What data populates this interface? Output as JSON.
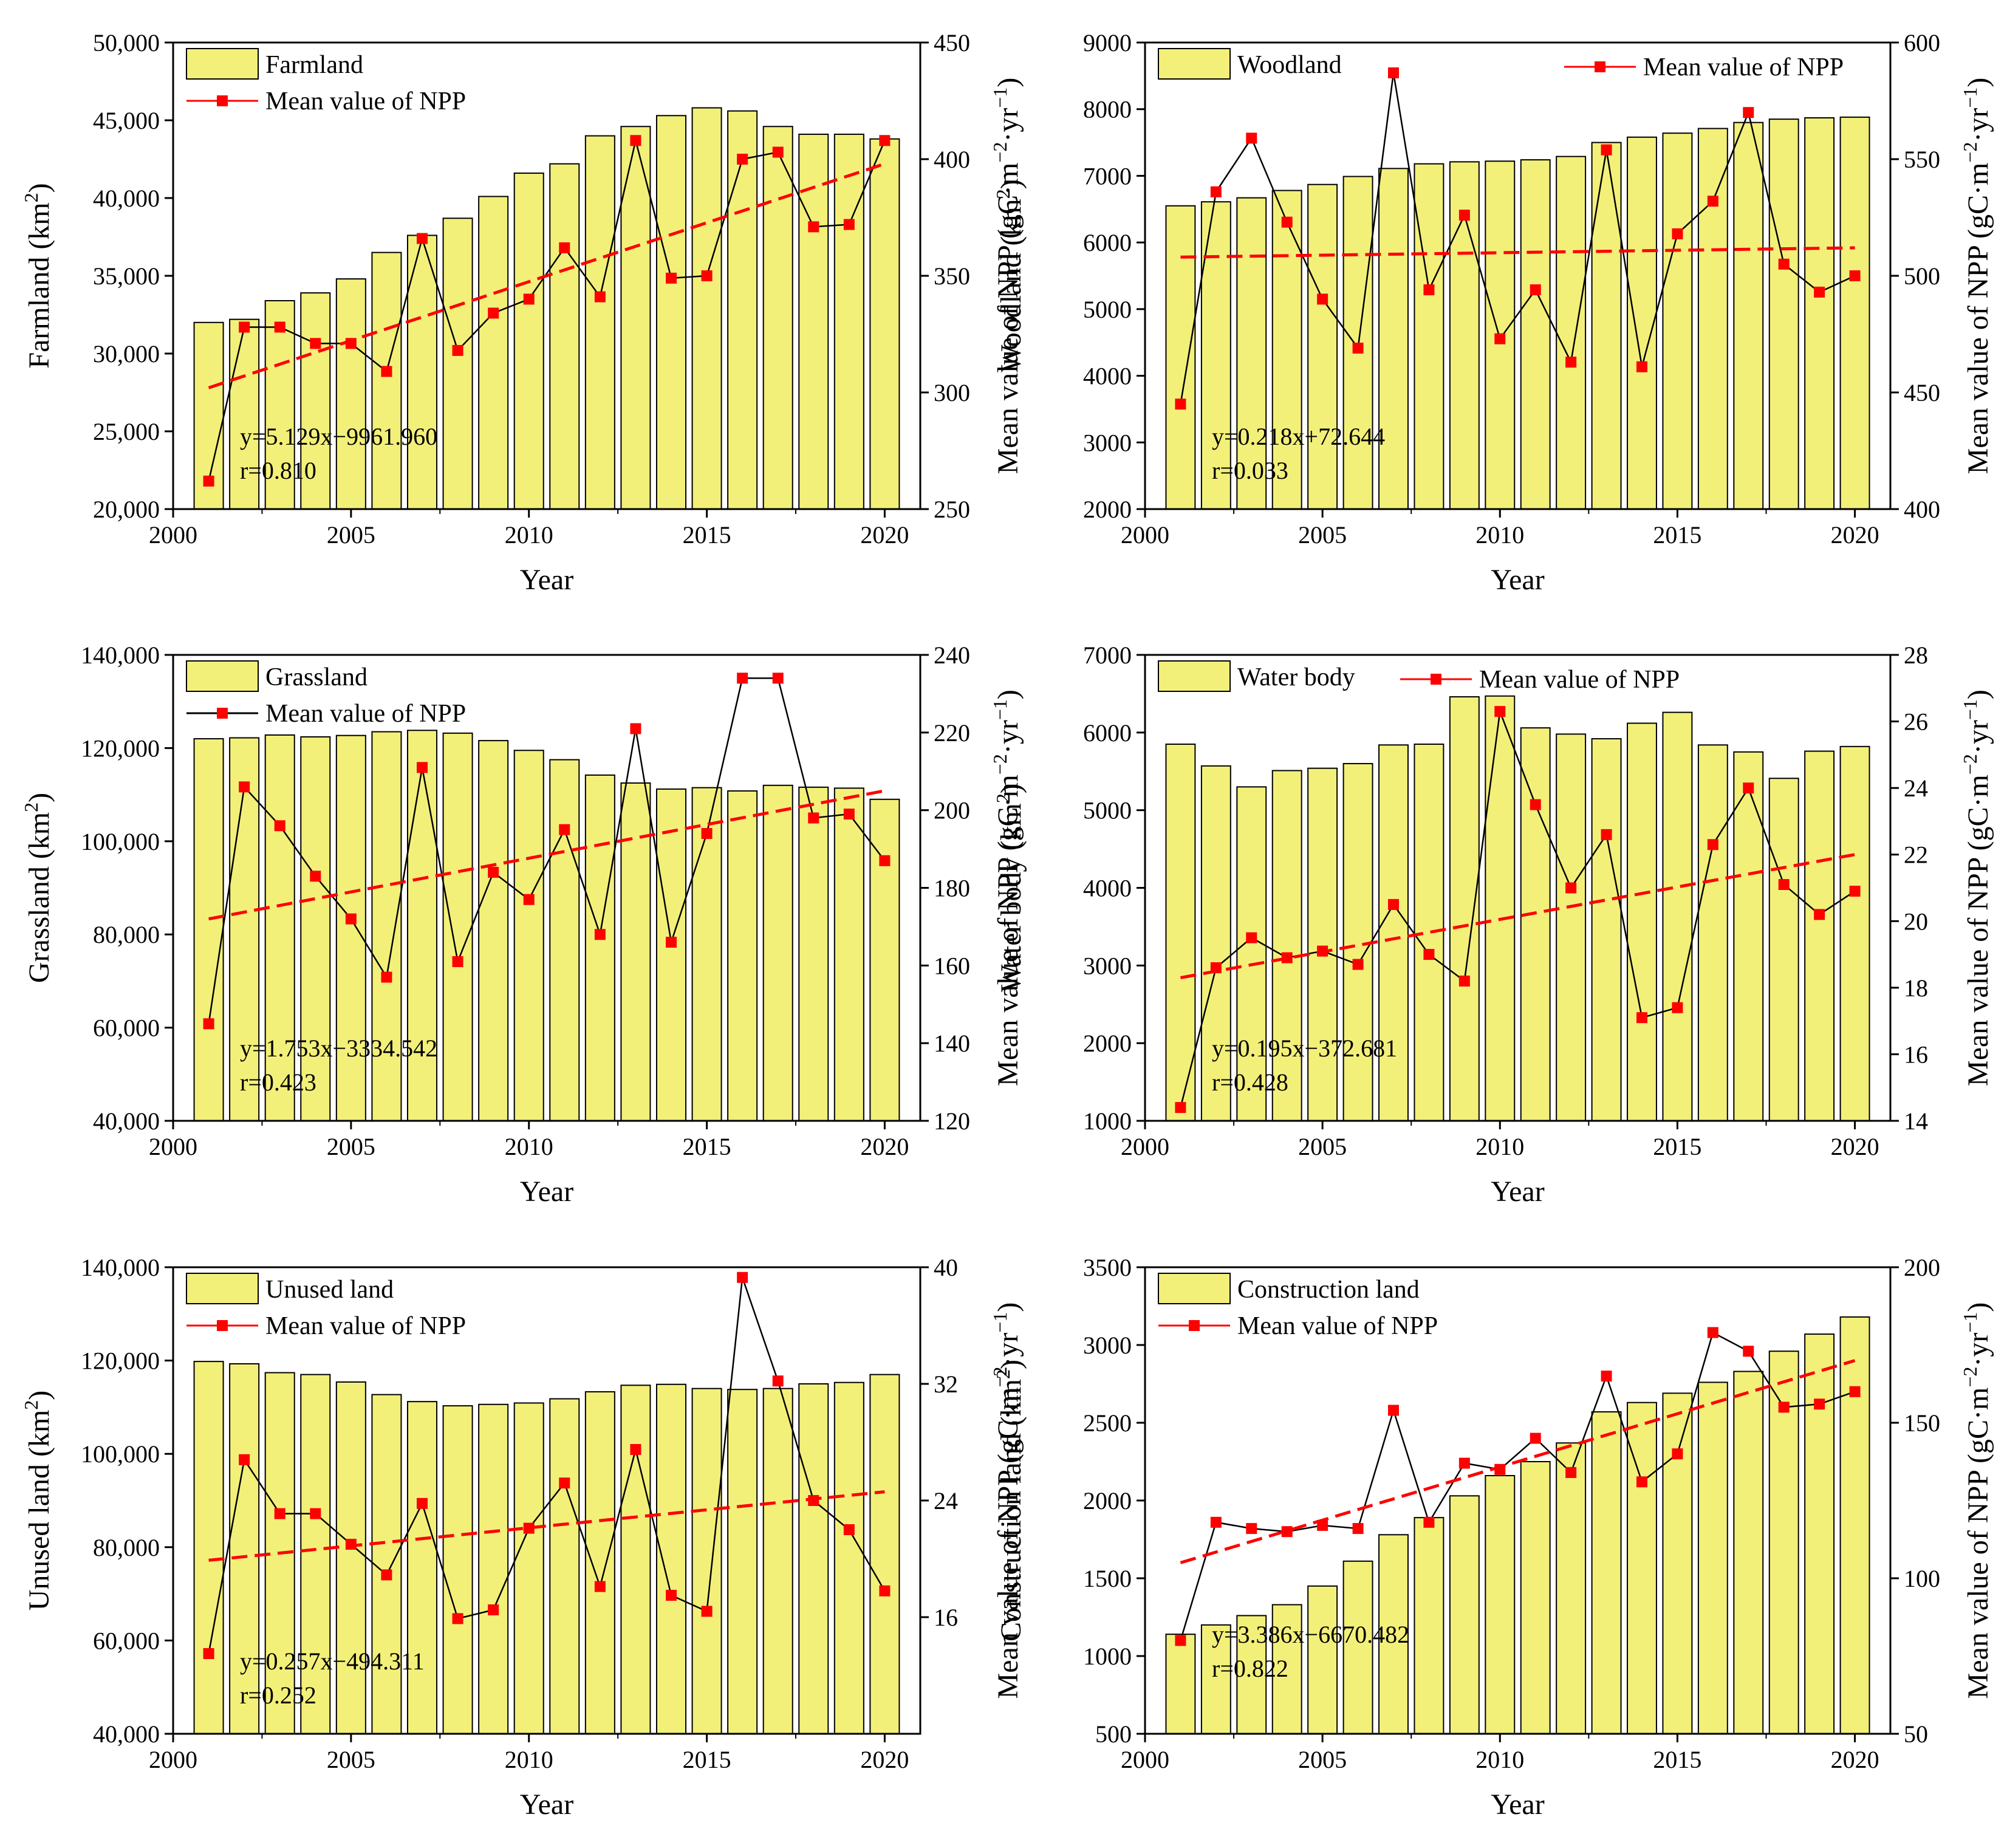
{
  "colors": {
    "bar": "#f3f07a",
    "bar_stroke": "#000000",
    "npp_line": "#000000",
    "npp_marker": "#ff0000",
    "trend": "#ff0000"
  },
  "chart_data": [
    {
      "type": "bar+line",
      "bar_label": "Farmland",
      "line_label": "Mean value of NPP",
      "xlabel": "Year",
      "ylabel": "Farmland (km²)",
      "ylabel_main": "Farmland (km",
      "y2label": "Mean value of NPP (gC·m⁻²·yr⁻¹)",
      "y2label_main": "Mean value of NPP (gC·m",
      "y2label_mid": "·yr",
      "xlim": [
        2000,
        2021
      ],
      "ylim": [
        20000,
        50000
      ],
      "y2lim": [
        250,
        450
      ],
      "xticks": [
        2000,
        2005,
        2010,
        2015,
        2020
      ],
      "yticks": [
        20000,
        25000,
        30000,
        35000,
        40000,
        45000,
        50000
      ],
      "ytick_labels": [
        "20,000",
        "25,000",
        "30,000",
        "35,000",
        "40,000",
        "45,000",
        "50,000"
      ],
      "y2ticks": [
        250,
        300,
        350,
        400,
        450
      ],
      "y2tick_labels": [
        "250",
        "300",
        "350",
        "400",
        "450"
      ],
      "legend": "top-left",
      "years": [
        2001,
        2002,
        2003,
        2004,
        2005,
        2006,
        2007,
        2008,
        2009,
        2010,
        2011,
        2012,
        2013,
        2014,
        2015,
        2016,
        2017,
        2018,
        2019,
        2020
      ],
      "area": [
        32000,
        32200,
        33400,
        33900,
        34800,
        36500,
        37600,
        38700,
        40100,
        41600,
        42200,
        44000,
        44600,
        45300,
        45800,
        45600,
        44600,
        44100,
        44100,
        43800
      ],
      "npp": [
        262,
        328,
        328,
        321,
        321,
        309,
        366,
        318,
        334,
        340,
        362,
        341,
        408,
        349,
        350,
        400,
        403,
        371,
        372,
        408
      ],
      "trend_start": 302,
      "trend_end": 398,
      "equation": "y=5.129x−9961.960",
      "r_text": "r=0.810"
    },
    {
      "type": "bar+line",
      "bar_label": "Woodland",
      "line_label": "Mean value of NPP",
      "xlabel": "Year",
      "ylabel": "Woodland (km²)",
      "ylabel_main": "Woodland (km",
      "y2label": "Mean value of NPP (gC·m⁻²·yr⁻¹)",
      "y2label_main": "Mean value of NPP (gC·m",
      "y2label_mid": "·yr",
      "xlim": [
        2000,
        2021
      ],
      "ylim": [
        2000,
        9000
      ],
      "y2lim": [
        400,
        600
      ],
      "xticks": [
        2000,
        2005,
        2010,
        2015,
        2020
      ],
      "yticks": [
        2000,
        3000,
        4000,
        5000,
        6000,
        7000,
        8000,
        9000
      ],
      "ytick_labels": [
        "2000",
        "3000",
        "4000",
        "5000",
        "6000",
        "7000",
        "8000",
        "9000"
      ],
      "y2ticks": [
        400,
        450,
        500,
        550,
        600
      ],
      "y2tick_labels": [
        "400",
        "450",
        "500",
        "550",
        "600"
      ],
      "legend": "top",
      "years": [
        2001,
        2002,
        2003,
        2004,
        2005,
        2006,
        2007,
        2008,
        2009,
        2010,
        2011,
        2012,
        2013,
        2014,
        2015,
        2016,
        2017,
        2018,
        2019,
        2020
      ],
      "area": [
        6550,
        6610,
        6670,
        6780,
        6870,
        6990,
        7110,
        7180,
        7210,
        7220,
        7240,
        7290,
        7500,
        7580,
        7640,
        7710,
        7800,
        7850,
        7870,
        7880
      ],
      "npp": [
        445,
        536,
        559,
        523,
        490,
        469,
        587,
        494,
        526,
        473,
        494,
        463,
        554,
        461,
        518,
        532,
        570,
        505,
        493,
        500
      ],
      "trend_start": 508,
      "trend_end": 512,
      "equation": "y=0.218x+72.644",
      "r_text": "r=0.033"
    },
    {
      "type": "bar+line",
      "bar_label": "Grassland",
      "line_label": "Mean value of NPP",
      "xlabel": "Year",
      "ylabel": "Grassland (km²)",
      "ylabel_main": "Grassland (km",
      "y2label": "Mean value of NPP (gC·m⁻²·yr⁻¹)",
      "y2label_main": "Mean value of NPP (gC·m",
      "y2label_mid": "·yr",
      "xlim": [
        2000,
        2021
      ],
      "ylim": [
        40000,
        140000
      ],
      "y2lim": [
        120,
        240
      ],
      "xticks": [
        2000,
        2005,
        2010,
        2015,
        2020
      ],
      "yticks": [
        40000,
        60000,
        80000,
        100000,
        120000,
        140000
      ],
      "ytick_labels": [
        "40,000",
        "60,000",
        "80,000",
        "100,000",
        "120,000",
        "140,000"
      ],
      "y2ticks": [
        120,
        140,
        160,
        180,
        200,
        220,
        240
      ],
      "y2tick_labels": [
        "120",
        "140",
        "160",
        "180",
        "200",
        "220",
        "240"
      ],
      "legend": "top-left",
      "years": [
        2001,
        2002,
        2003,
        2004,
        2005,
        2006,
        2007,
        2008,
        2009,
        2010,
        2011,
        2012,
        2013,
        2014,
        2015,
        2016,
        2017,
        2018,
        2019,
        2020
      ],
      "area": [
        122000,
        122200,
        122800,
        122400,
        122700,
        123500,
        123800,
        123200,
        121600,
        119500,
        117500,
        114200,
        112500,
        111200,
        111500,
        110800,
        112000,
        111600,
        111400,
        109000
      ],
      "npp": [
        145,
        206,
        196,
        183,
        172,
        157,
        211,
        161,
        184,
        177,
        195,
        168,
        221,
        166,
        194,
        234,
        234,
        198,
        199,
        187
      ],
      "trend_start": 172,
      "trend_end": 205,
      "equation": "y=1.753x−3334.542",
      "r_text": "r=0.423"
    },
    {
      "type": "bar+line",
      "bar_label": "Water body",
      "line_label": "Mean value of NPP",
      "xlabel": "Year",
      "ylabel": "Water body (km²)",
      "ylabel_main": "Water body (km",
      "y2label": "Mean value of NPP (gC·m⁻²·yr⁻¹)",
      "y2label_main": "Mean value of NPP (gC·m",
      "y2label_mid": "·yr",
      "xlim": [
        2000,
        2021
      ],
      "ylim": [
        1000,
        7000
      ],
      "y2lim": [
        14,
        28
      ],
      "xticks": [
        2000,
        2005,
        2010,
        2015,
        2020
      ],
      "yticks": [
        1000,
        2000,
        3000,
        4000,
        5000,
        6000,
        7000
      ],
      "ytick_labels": [
        "1000",
        "2000",
        "3000",
        "4000",
        "5000",
        "6000",
        "7000"
      ],
      "y2ticks": [
        14,
        16,
        18,
        20,
        22,
        24,
        26,
        28
      ],
      "y2tick_labels": [
        "14",
        "16",
        "18",
        "20",
        "22",
        "24",
        "26",
        "28"
      ],
      "legend": "top",
      "years": [
        2001,
        2002,
        2003,
        2004,
        2005,
        2006,
        2007,
        2008,
        2009,
        2010,
        2011,
        2012,
        2013,
        2014,
        2015,
        2016,
        2017,
        2018,
        2019,
        2020
      ],
      "area": [
        5850,
        5570,
        5300,
        5510,
        5540,
        5600,
        5840,
        5850,
        6460,
        6470,
        6060,
        5980,
        5920,
        6120,
        6260,
        5840,
        5750,
        5410,
        5760,
        5820
      ],
      "npp": [
        14.4,
        18.6,
        19.5,
        18.9,
        19.1,
        18.7,
        20.5,
        19.0,
        18.2,
        26.3,
        23.5,
        21.0,
        22.6,
        17.1,
        17.4,
        22.3,
        24.0,
        21.1,
        20.2,
        20.9
      ],
      "trend_start": 18.3,
      "trend_end": 22.0,
      "equation": "y=0.195x−372.681",
      "r_text": "r=0.428"
    },
    {
      "type": "bar+line",
      "bar_label": "Unused land",
      "line_label": "Mean value of NPP",
      "xlabel": "Year",
      "ylabel": "Unused land (km²)",
      "ylabel_main": "Unused land (km",
      "y2label": "Mean value of NPP (gC·m⁻²·yr⁻¹)",
      "y2label_main": "Mean value of NPP (gC·m",
      "y2label_mid": "·yr",
      "xlim": [
        2000,
        2021
      ],
      "ylim": [
        40000,
        140000
      ],
      "y2lim": [
        8,
        40
      ],
      "xticks": [
        2000,
        2005,
        2010,
        2015,
        2020
      ],
      "yticks": [
        40000,
        60000,
        80000,
        100000,
        120000,
        140000
      ],
      "ytick_labels": [
        "40,000",
        "60,000",
        "80,000",
        "100,000",
        "120,000",
        "140,000"
      ],
      "y2ticks": [
        16,
        24,
        32,
        40
      ],
      "y2tick_labels": [
        "16",
        "24",
        "32",
        "40"
      ],
      "legend": "top-left",
      "years": [
        2001,
        2002,
        2003,
        2004,
        2005,
        2006,
        2007,
        2008,
        2009,
        2010,
        2011,
        2012,
        2013,
        2014,
        2015,
        2016,
        2017,
        2018,
        2019,
        2020
      ],
      "area": [
        119800,
        119300,
        117400,
        117000,
        115400,
        112700,
        111200,
        110300,
        110600,
        110900,
        111800,
        113300,
        114700,
        114900,
        114000,
        113800,
        114000,
        115000,
        115300,
        117000
      ],
      "npp": [
        13.5,
        26.8,
        23.1,
        23.1,
        21.0,
        18.9,
        23.8,
        15.9,
        16.5,
        22.1,
        25.2,
        18.1,
        27.5,
        17.5,
        16.4,
        39.3,
        32.2,
        24.0,
        22.0,
        17.8
      ],
      "trend_start": 19.9,
      "trend_end": 24.6,
      "equation": "y=0.257x−494.311",
      "r_text": "r=0.252"
    },
    {
      "type": "bar+line",
      "bar_label": "Construction land",
      "line_label": "Mean value of NPP",
      "xlabel": "Year",
      "ylabel": "Construction land (km²)",
      "ylabel_main": "Construction land (km",
      "y2label": "Mean value of NPP (gC·m⁻²·yr⁻¹)",
      "y2label_main": "Mean value of NPP (gC·m",
      "y2label_mid": "·yr",
      "xlim": [
        2000,
        2021
      ],
      "ylim": [
        500,
        3500
      ],
      "y2lim": [
        50,
        200
      ],
      "xticks": [
        2000,
        2005,
        2010,
        2015,
        2020
      ],
      "yticks": [
        500,
        1000,
        1500,
        2000,
        2500,
        3000,
        3500
      ],
      "ytick_labels": [
        "500",
        "1000",
        "1500",
        "2000",
        "2500",
        "3000",
        "3500"
      ],
      "y2ticks": [
        50,
        100,
        150,
        200
      ],
      "y2tick_labels": [
        "50",
        "100",
        "150",
        "200"
      ],
      "legend": "top-left",
      "years": [
        2001,
        2002,
        2003,
        2004,
        2005,
        2006,
        2007,
        2008,
        2009,
        2010,
        2011,
        2012,
        2013,
        2014,
        2015,
        2016,
        2017,
        2018,
        2019,
        2020
      ],
      "area": [
        1140,
        1200,
        1260,
        1330,
        1450,
        1610,
        1780,
        1890,
        2030,
        2160,
        2250,
        2370,
        2570,
        2630,
        2690,
        2760,
        2830,
        2960,
        3070,
        3180
      ],
      "npp": [
        80,
        118,
        116,
        115,
        117,
        116,
        154,
        118,
        137,
        135,
        145,
        134,
        165,
        131,
        140,
        179,
        173,
        155,
        156,
        160
      ],
      "trend_start": 105,
      "trend_end": 170,
      "equation": "y=3.386x−6670.482",
      "r_text": "r=0.822"
    }
  ]
}
